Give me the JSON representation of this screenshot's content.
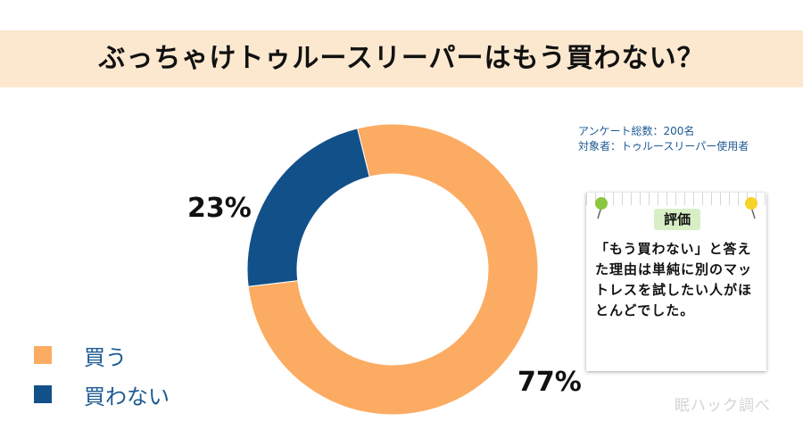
{
  "header": {
    "title": "ぶっちゃけトゥルースリーパーはもう買わない？"
  },
  "survey": {
    "respondents": "アンケート総数：200名",
    "target": "対象者：トゥルースリーパー使用者"
  },
  "chart_data": {
    "type": "pie",
    "categories": [
      "買う",
      "買わない"
    ],
    "values": [
      77,
      23
    ],
    "unit": "%",
    "value_labels": [
      "77%",
      "23%"
    ],
    "colors": [
      "#fcab62",
      "#12508a"
    ],
    "legend_position": "bottom-left",
    "style": "donut"
  },
  "note": {
    "badge": "評価",
    "text": "「もう買わない」と答えた理由は単純に別のマットレスを試したい人がほとんどでした。"
  },
  "watermark": "眠ハック調べ"
}
